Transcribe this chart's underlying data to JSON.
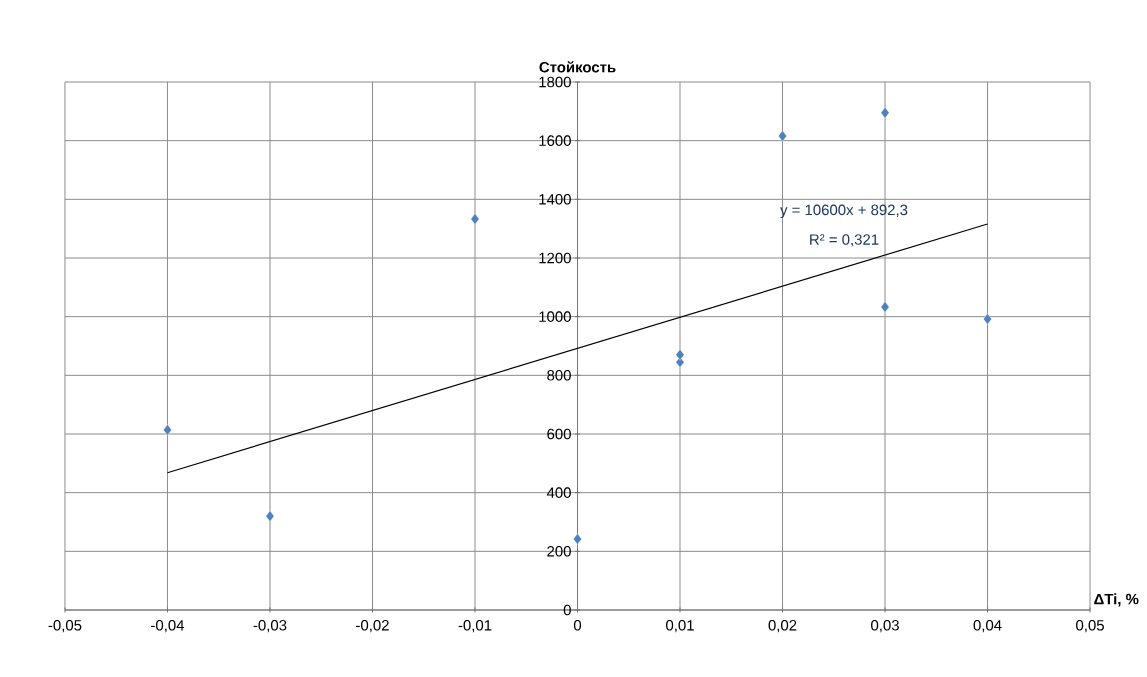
{
  "chart_data": {
    "type": "scatter",
    "ylabel": "Стойкость",
    "xlabel": "ΔTi, %",
    "annotations": [
      "y = 10600x + 892,3",
      "R² = 0,321"
    ],
    "series": [
      {
        "color": "#4f81bd",
        "marker": "diamond",
        "x": [
          -0.04,
          -0.03,
          -0.01,
          0,
          0.01,
          0.01,
          0.02,
          0.03,
          0.03,
          0.04
        ],
        "values": [
          614,
          320,
          1333,
          242,
          845,
          870,
          1616,
          1695,
          1033,
          992
        ]
      },
      {
        "type": "line",
        "color": "#000000",
        "marker": "none",
        "line_style": "solid",
        "x": [
          -0.04,
          0.04
        ],
        "values": [
          468,
          1316
        ]
      }
    ],
    "xlim": [
      -0.05,
      0.05
    ],
    "ylim": [
      0,
      1800
    ],
    "xticks": [
      {
        "value": -0.05,
        "label": "-0,05"
      },
      {
        "value": -0.04,
        "label": "-0,04"
      },
      {
        "value": -0.03,
        "label": "-0,03"
      },
      {
        "value": -0.02,
        "label": "-0,02"
      },
      {
        "value": -0.01,
        "label": "-0,01"
      },
      0,
      {
        "value": 0.01,
        "label": "0,01"
      },
      {
        "value": 0.02,
        "label": "0,02"
      },
      {
        "value": 0.03,
        "label": "0,03"
      },
      {
        "value": 0.04,
        "label": "0,04"
      },
      {
        "value": 0.05,
        "label": "0,05"
      }
    ],
    "yticks": [
      0,
      200,
      400,
      600,
      800,
      1000,
      1200,
      1400,
      1600,
      1800
    ],
    "grid": true
  }
}
